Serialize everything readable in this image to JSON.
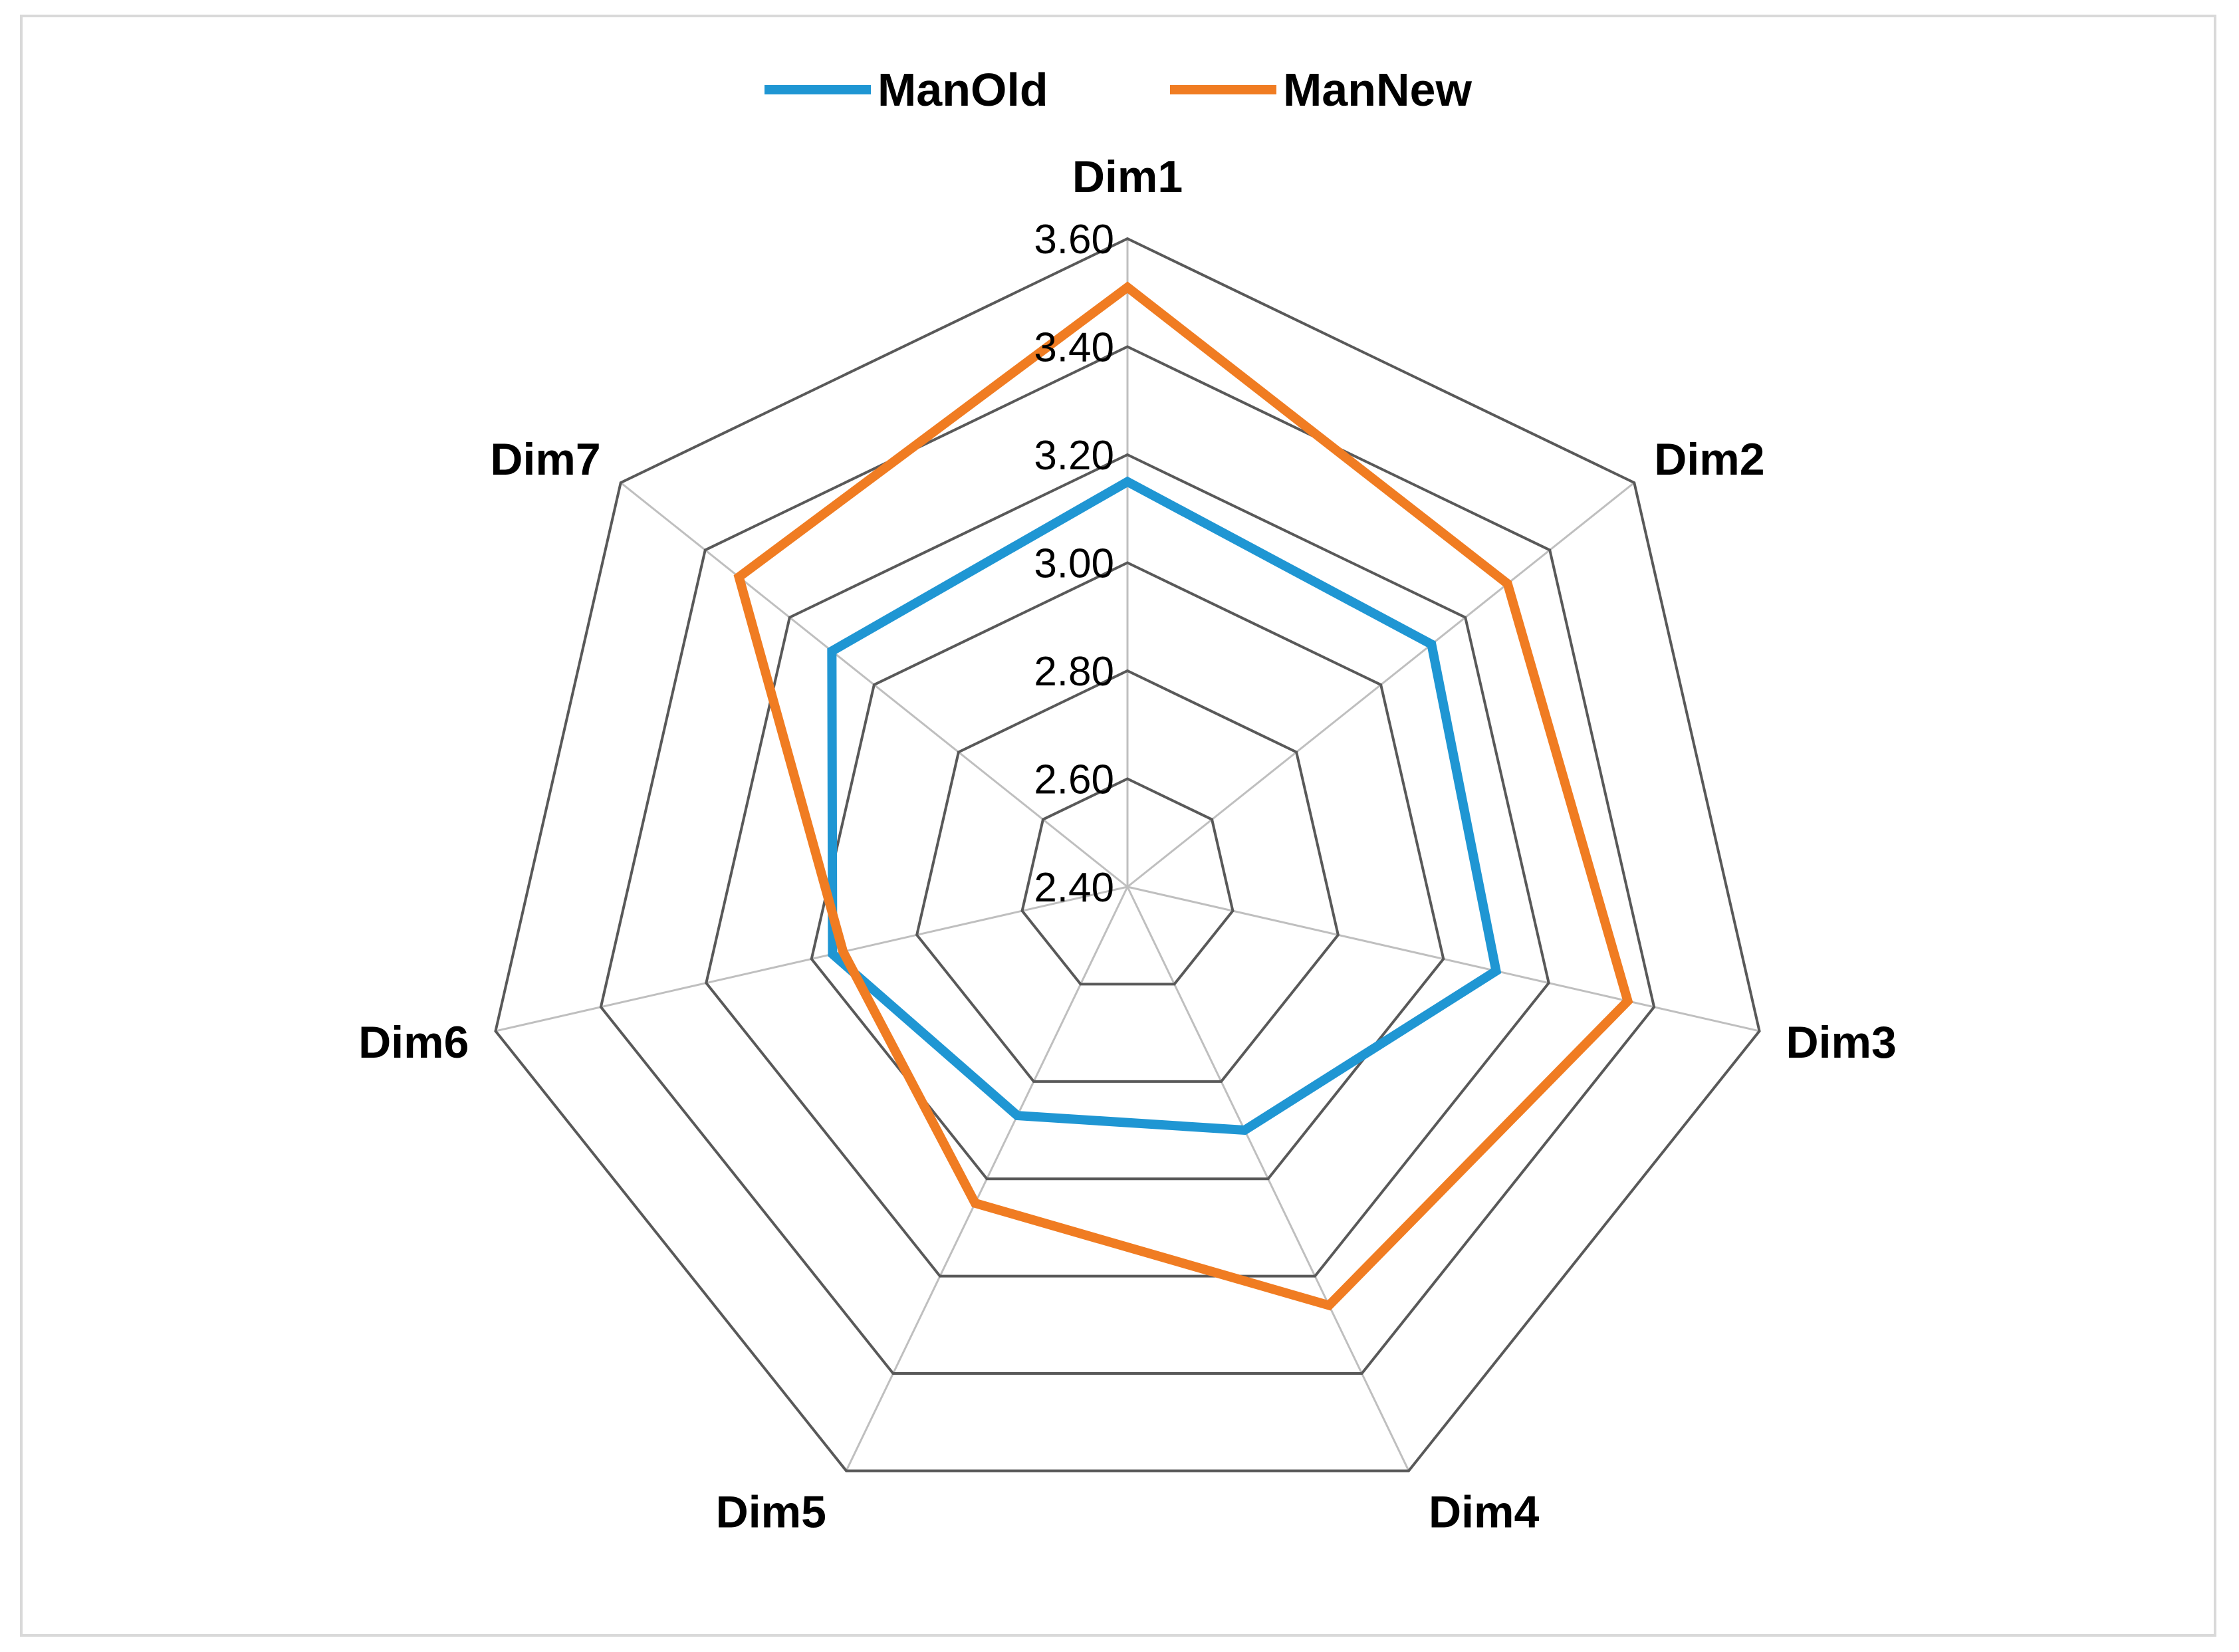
{
  "chart_data": {
    "type": "radar",
    "categories": [
      "Dim1",
      "Dim2",
      "Dim3",
      "Dim4",
      "Dim5",
      "Dim6",
      "Dim7"
    ],
    "series": [
      {
        "name": "ManOld",
        "color": "#1f96d3",
        "values": [
          3.15,
          3.12,
          3.1,
          2.9,
          2.87,
          2.96,
          3.1
        ]
      },
      {
        "name": "ManNew",
        "color": "#f07c22",
        "values": [
          3.51,
          3.3,
          3.35,
          3.26,
          3.05,
          2.94,
          3.32
        ]
      }
    ],
    "rlim": [
      2.4,
      3.6
    ],
    "ticks": [
      "2.40",
      "2.60",
      "2.80",
      "3.00",
      "3.20",
      "3.40",
      "3.60"
    ],
    "legend_position": "top",
    "grid": true,
    "grid_color": "#595959",
    "spoke_color": "#bfbfbf"
  }
}
